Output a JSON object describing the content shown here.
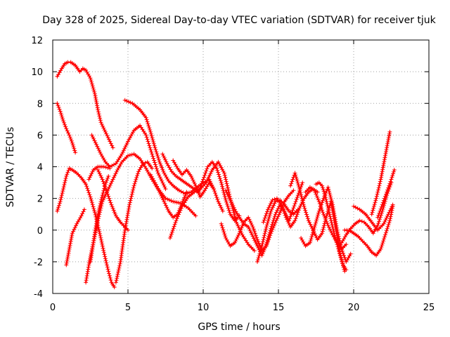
{
  "chart_data": {
    "type": "scatter",
    "title": "Day 328 of 2025, Sidereal Day-to-day VTEC variation (SDTVAR) for receiver tjuk",
    "xlabel": "GPS time / hours",
    "ylabel": "SDTVAR / TECUs",
    "xlim": [
      0,
      25
    ],
    "ylim": [
      -4,
      12
    ],
    "xticks": [
      0,
      5,
      10,
      15,
      20,
      25
    ],
    "yticks": [
      -4,
      -2,
      0,
      2,
      4,
      6,
      8,
      10,
      12
    ],
    "grid": true,
    "marker": "+",
    "color": "#ff0000",
    "series": [
      {
        "name": "s1",
        "x": [
          0.3,
          0.6,
          0.8,
          1.0,
          1.2,
          1.5,
          1.8,
          2.0,
          2.2,
          2.5,
          2.8,
          3.0,
          3.2,
          3.5,
          3.8,
          4.0
        ],
        "y": [
          9.7,
          10.2,
          10.5,
          10.6,
          10.6,
          10.4,
          10.0,
          10.2,
          10.1,
          9.6,
          8.6,
          7.6,
          6.8,
          6.2,
          5.6,
          5.2
        ]
      },
      {
        "name": "s2",
        "x": [
          0.3,
          0.5,
          0.7,
          0.9,
          1.1,
          1.3,
          1.5
        ],
        "y": [
          8.0,
          7.5,
          6.9,
          6.4,
          6.0,
          5.5,
          4.9
        ]
      },
      {
        "name": "s3",
        "x": [
          0.3,
          0.5,
          0.7,
          0.9,
          1.1,
          1.3,
          1.6,
          1.9,
          2.2,
          2.5,
          2.8,
          3.1,
          3.4,
          3.7,
          3.9,
          4.1
        ],
        "y": [
          1.2,
          1.8,
          2.6,
          3.4,
          3.9,
          3.8,
          3.6,
          3.3,
          2.9,
          2.1,
          1.1,
          -0.1,
          -1.4,
          -2.6,
          -3.3,
          -3.6
        ]
      },
      {
        "name": "s4",
        "x": [
          0.9,
          1.1,
          1.3,
          1.6,
          1.9,
          2.1
        ],
        "y": [
          -2.2,
          -1.2,
          -0.2,
          0.4,
          0.9,
          1.3
        ]
      },
      {
        "name": "s5",
        "x": [
          2.2,
          2.4,
          2.7,
          3.0,
          3.3,
          3.7,
          4.0,
          4.3,
          4.6,
          5.0,
          5.4,
          5.8,
          6.2,
          6.6,
          7.0,
          7.5,
          8.0,
          8.5,
          9.0,
          9.5
        ],
        "y": [
          -3.3,
          -2.2,
          -0.8,
          0.6,
          1.8,
          2.6,
          3.2,
          3.8,
          4.3,
          4.7,
          4.8,
          4.5,
          3.9,
          3.2,
          2.6,
          2.0,
          1.8,
          1.7,
          1.4,
          0.9
        ]
      },
      {
        "name": "s6",
        "x": [
          2.6,
          2.9,
          3.2,
          3.5,
          3.8,
          4.2,
          4.6,
          5.0,
          5.4,
          5.8,
          6.2,
          6.6,
          7.0,
          7.5
        ],
        "y": [
          6.0,
          5.4,
          4.8,
          4.3,
          4.0,
          4.2,
          4.8,
          5.6,
          6.3,
          6.6,
          6.0,
          4.8,
          3.6,
          2.6
        ]
      },
      {
        "name": "s7",
        "x": [
          2.4,
          2.7,
          3.0,
          3.4,
          3.8
        ],
        "y": [
          3.2,
          3.8,
          4.0,
          4.0,
          3.9
        ]
      },
      {
        "name": "s8",
        "x": [
          2.5,
          2.7,
          2.9,
          3.1,
          3.3,
          3.5,
          3.7
        ],
        "y": [
          -2.0,
          -0.8,
          0.4,
          1.4,
          2.2,
          2.9,
          3.4
        ]
      },
      {
        "name": "s9",
        "x": [
          3.0,
          3.3,
          3.6,
          3.9,
          4.2,
          4.5,
          4.8,
          5.0
        ],
        "y": [
          3.8,
          3.2,
          2.4,
          1.6,
          0.9,
          0.5,
          0.2,
          0.0
        ]
      },
      {
        "name": "s10",
        "x": [
          4.2,
          4.5,
          4.8,
          5.1,
          5.4,
          5.7,
          6.0,
          6.3,
          6.6
        ],
        "y": [
          -3.3,
          -2.0,
          0.0,
          1.6,
          2.8,
          3.7,
          4.2,
          4.3,
          3.9
        ]
      },
      {
        "name": "s11",
        "x": [
          4.8,
          5.3,
          5.8,
          6.2,
          6.5,
          6.8,
          7.1,
          7.4,
          7.7,
          8.0,
          8.4,
          8.8,
          9.2,
          9.6,
          10.0,
          10.4,
          10.7
        ],
        "y": [
          8.2,
          8.0,
          7.6,
          7.1,
          6.2,
          5.2,
          4.3,
          3.6,
          3.1,
          2.8,
          2.5,
          2.3,
          2.4,
          2.7,
          3.0,
          3.2,
          2.6
        ]
      },
      {
        "name": "s12",
        "x": [
          6.5,
          6.8,
          7.1,
          7.4,
          7.7,
          8.0,
          8.3,
          8.6,
          8.9
        ],
        "y": [
          3.5,
          3.0,
          2.4,
          1.8,
          1.2,
          0.8,
          1.0,
          1.7,
          2.4
        ]
      },
      {
        "name": "s13",
        "x": [
          7.3,
          7.6,
          7.9,
          8.2,
          8.5,
          8.8,
          9.1,
          9.4,
          9.7,
          10.0,
          10.3,
          10.6,
          10.9,
          11.2,
          11.5,
          11.8,
          12.1,
          12.4
        ],
        "y": [
          4.8,
          4.2,
          3.7,
          3.4,
          3.2,
          3.0,
          2.8,
          2.6,
          2.4,
          3.2,
          4.0,
          4.3,
          3.9,
          3.0,
          1.9,
          1.0,
          0.6,
          0.9
        ]
      },
      {
        "name": "s14",
        "x": [
          7.8,
          8.2,
          8.6,
          9.0,
          9.4,
          9.8,
          10.2,
          10.6,
          11.0,
          11.4,
          11.8,
          12.2,
          12.6,
          13.0,
          13.4
        ],
        "y": [
          -0.5,
          0.6,
          1.5,
          2.1,
          2.4,
          2.6,
          3.0,
          3.8,
          4.3,
          3.6,
          2.0,
          0.5,
          -0.3,
          -0.9,
          -1.3
        ]
      },
      {
        "name": "s15",
        "x": [
          8.0,
          8.3,
          8.6,
          8.9,
          9.2,
          9.5,
          9.8,
          10.1,
          10.4,
          10.7,
          11.0,
          11.3
        ],
        "y": [
          4.4,
          3.9,
          3.5,
          3.8,
          3.4,
          2.8,
          2.1,
          2.5,
          3.0,
          2.6,
          1.8,
          1.2
        ]
      },
      {
        "name": "s16",
        "x": [
          11.2,
          11.5,
          11.8,
          12.1,
          12.4,
          12.7,
          13.0,
          13.3,
          13.6,
          13.9,
          14.2,
          14.5,
          14.8,
          15.1,
          15.4,
          15.7,
          16.0
        ],
        "y": [
          0.4,
          -0.5,
          -1.0,
          -0.8,
          -0.2,
          0.5,
          0.8,
          0.2,
          -0.6,
          -1.3,
          -1.0,
          -0.2,
          0.5,
          1.1,
          1.8,
          2.2,
          2.5
        ]
      },
      {
        "name": "s17",
        "x": [
          11.5,
          11.8,
          12.1,
          12.4,
          12.7,
          13.0,
          13.3,
          13.6,
          13.9,
          14.2,
          14.5,
          14.8,
          15.1,
          15.4,
          15.7,
          16.0,
          16.3,
          16.6
        ],
        "y": [
          2.5,
          1.9,
          1.3,
          0.8,
          0.4,
          0.2,
          -0.4,
          -1.0,
          -1.6,
          -0.9,
          0.1,
          1.0,
          1.6,
          1.2,
          0.6,
          1.4,
          2.2,
          3.0
        ]
      },
      {
        "name": "s18",
        "x": [
          13.6,
          13.9,
          14.2,
          14.5,
          14.8,
          15.1,
          15.4,
          15.7,
          16.0,
          16.3
        ],
        "y": [
          -2.0,
          -1.0,
          0.2,
          1.2,
          1.8,
          1.9,
          1.6,
          1.2,
          1.0,
          1.3
        ]
      },
      {
        "name": "s19",
        "x": [
          14.0,
          14.3,
          14.6,
          14.9,
          15.2,
          15.5,
          15.8,
          16.1,
          16.4,
          16.7,
          17.0,
          17.3,
          17.6
        ],
        "y": [
          0.5,
          1.3,
          1.9,
          2.0,
          1.6,
          0.8,
          0.2,
          0.6,
          1.4,
          2.0,
          2.4,
          2.6,
          2.4
        ]
      },
      {
        "name": "s20",
        "x": [
          15.8,
          16.1,
          16.4,
          16.7,
          17.0,
          17.3,
          17.6,
          17.9,
          18.2,
          18.5,
          18.8,
          19.1,
          19.4
        ],
        "y": [
          2.8,
          3.6,
          2.6,
          1.5,
          0.6,
          0.0,
          -0.6,
          -0.2,
          0.9,
          1.8,
          0.2,
          -1.5,
          -2.6
        ]
      },
      {
        "name": "s21",
        "x": [
          16.5,
          16.8,
          17.1,
          17.4,
          17.7,
          18.0,
          18.3,
          18.6,
          18.9,
          19.2,
          19.5,
          19.8
        ],
        "y": [
          -0.5,
          -1.0,
          -0.8,
          0.2,
          1.2,
          2.0,
          2.7,
          1.6,
          0.0,
          -1.2,
          -2.0,
          -1.5
        ]
      },
      {
        "name": "s22",
        "x": [
          16.8,
          17.1,
          17.4,
          17.7,
          18.0,
          18.3,
          18.6,
          18.9,
          19.2,
          19.5
        ],
        "y": [
          2.4,
          2.7,
          2.5,
          1.8,
          1.0,
          0.3,
          -0.3,
          -0.8,
          -1.2,
          -0.9
        ]
      },
      {
        "name": "s23",
        "x": [
          17.5,
          17.7,
          17.9,
          18.1,
          18.3,
          18.5,
          18.7,
          18.9,
          19.1,
          19.3,
          19.5
        ],
        "y": [
          2.9,
          3.0,
          2.8,
          2.2,
          1.4,
          0.6,
          -0.2,
          -0.9,
          -1.6,
          -2.2,
          -2.5
        ]
      },
      {
        "name": "s24",
        "x": [
          19.4,
          19.7,
          20.0,
          20.3,
          20.6,
          20.9,
          21.2,
          21.5,
          21.8,
          22.1,
          22.4,
          22.6
        ],
        "y": [
          0.0,
          0.0,
          -0.2,
          -0.4,
          -0.7,
          -1.0,
          -1.4,
          -1.6,
          -1.2,
          -0.3,
          0.6,
          1.5
        ]
      },
      {
        "name": "s25",
        "x": [
          19.2,
          19.5,
          19.8,
          20.1,
          20.4,
          20.7,
          21.0,
          21.3,
          21.6,
          21.9,
          22.2,
          22.5
        ],
        "y": [
          -0.8,
          -0.3,
          0.1,
          0.4,
          0.6,
          0.5,
          0.2,
          -0.2,
          0.3,
          1.2,
          2.2,
          3.0
        ]
      },
      {
        "name": "s26",
        "x": [
          20.0,
          20.4,
          20.8,
          21.2,
          21.6,
          22.0,
          22.3,
          22.6
        ],
        "y": [
          1.5,
          1.3,
          1.0,
          0.5,
          0.0,
          0.4,
          1.0,
          1.6
        ]
      },
      {
        "name": "s27",
        "x": [
          21.2,
          21.5,
          21.8,
          22.0,
          22.2,
          22.4
        ],
        "y": [
          1.0,
          2.0,
          3.2,
          4.2,
          5.2,
          6.2
        ]
      },
      {
        "name": "s28",
        "x": [
          21.6,
          21.9,
          22.2,
          22.5,
          22.7
        ],
        "y": [
          0.8,
          1.6,
          2.4,
          3.2,
          3.8
        ]
      }
    ]
  }
}
